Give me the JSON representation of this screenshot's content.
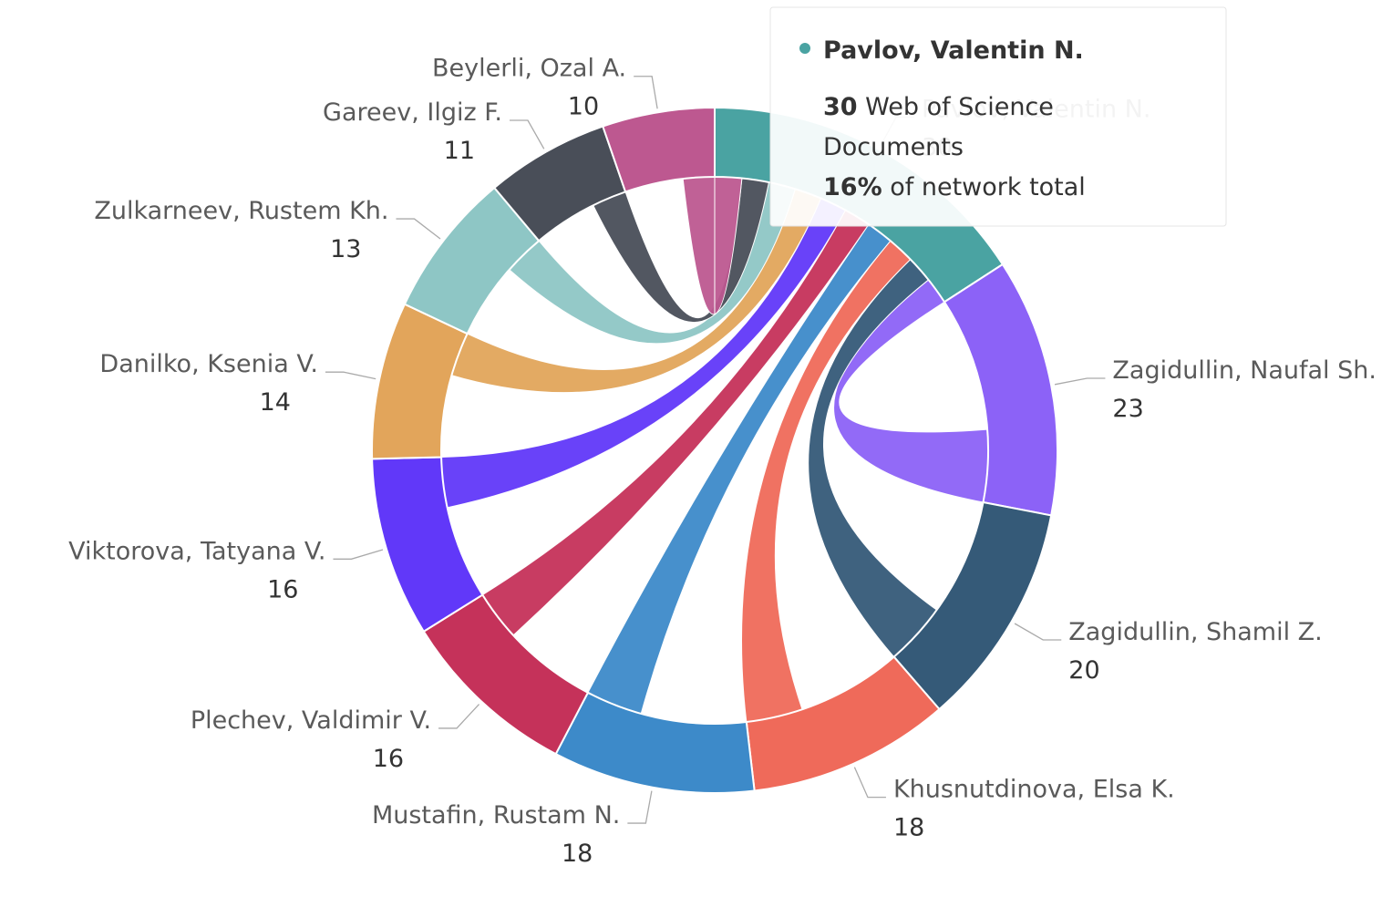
{
  "chart_data": {
    "type": "dependencywheel",
    "nodes": [
      {
        "name": "Pavlov, Valentin N.",
        "value": 30,
        "color": "#4aa3a2"
      },
      {
        "name": "Zagidullin, Naufal Sh.",
        "value": 23,
        "color": "#8c62f7"
      },
      {
        "name": "Zagidullin, Shamil Z.",
        "value": 20,
        "color": "#355a78"
      },
      {
        "name": "Khusnutdinova, Elsa K.",
        "value": 18,
        "color": "#ef6a5a"
      },
      {
        "name": "Mustafin, Rustam N.",
        "value": 18,
        "color": "#3d8ac9"
      },
      {
        "name": "Plechev, Valdimir V.",
        "value": 16,
        "color": "#c5325a"
      },
      {
        "name": "Viktorova, Tatyana V.",
        "value": 16,
        "color": "#6138f9"
      },
      {
        "name": "Danilko, Ksenia V.",
        "value": 14,
        "color": "#e2a55b"
      },
      {
        "name": "Zulkarneev, Rustem Kh.",
        "value": 13,
        "color": "#8ec6c5"
      },
      {
        "name": "Gareev, Ilgiz F.",
        "value": 11,
        "color": "#494e58"
      },
      {
        "name": "Beylerli, Ozal A.",
        "value": 10,
        "color": "#bd5890"
      }
    ],
    "tooltip": {
      "name": "Pavlov, Valentin N.",
      "value": 30,
      "value_text": "Web of Science",
      "value_text2": "Documents",
      "percent": "16%",
      "percent_text": "of network total"
    }
  }
}
